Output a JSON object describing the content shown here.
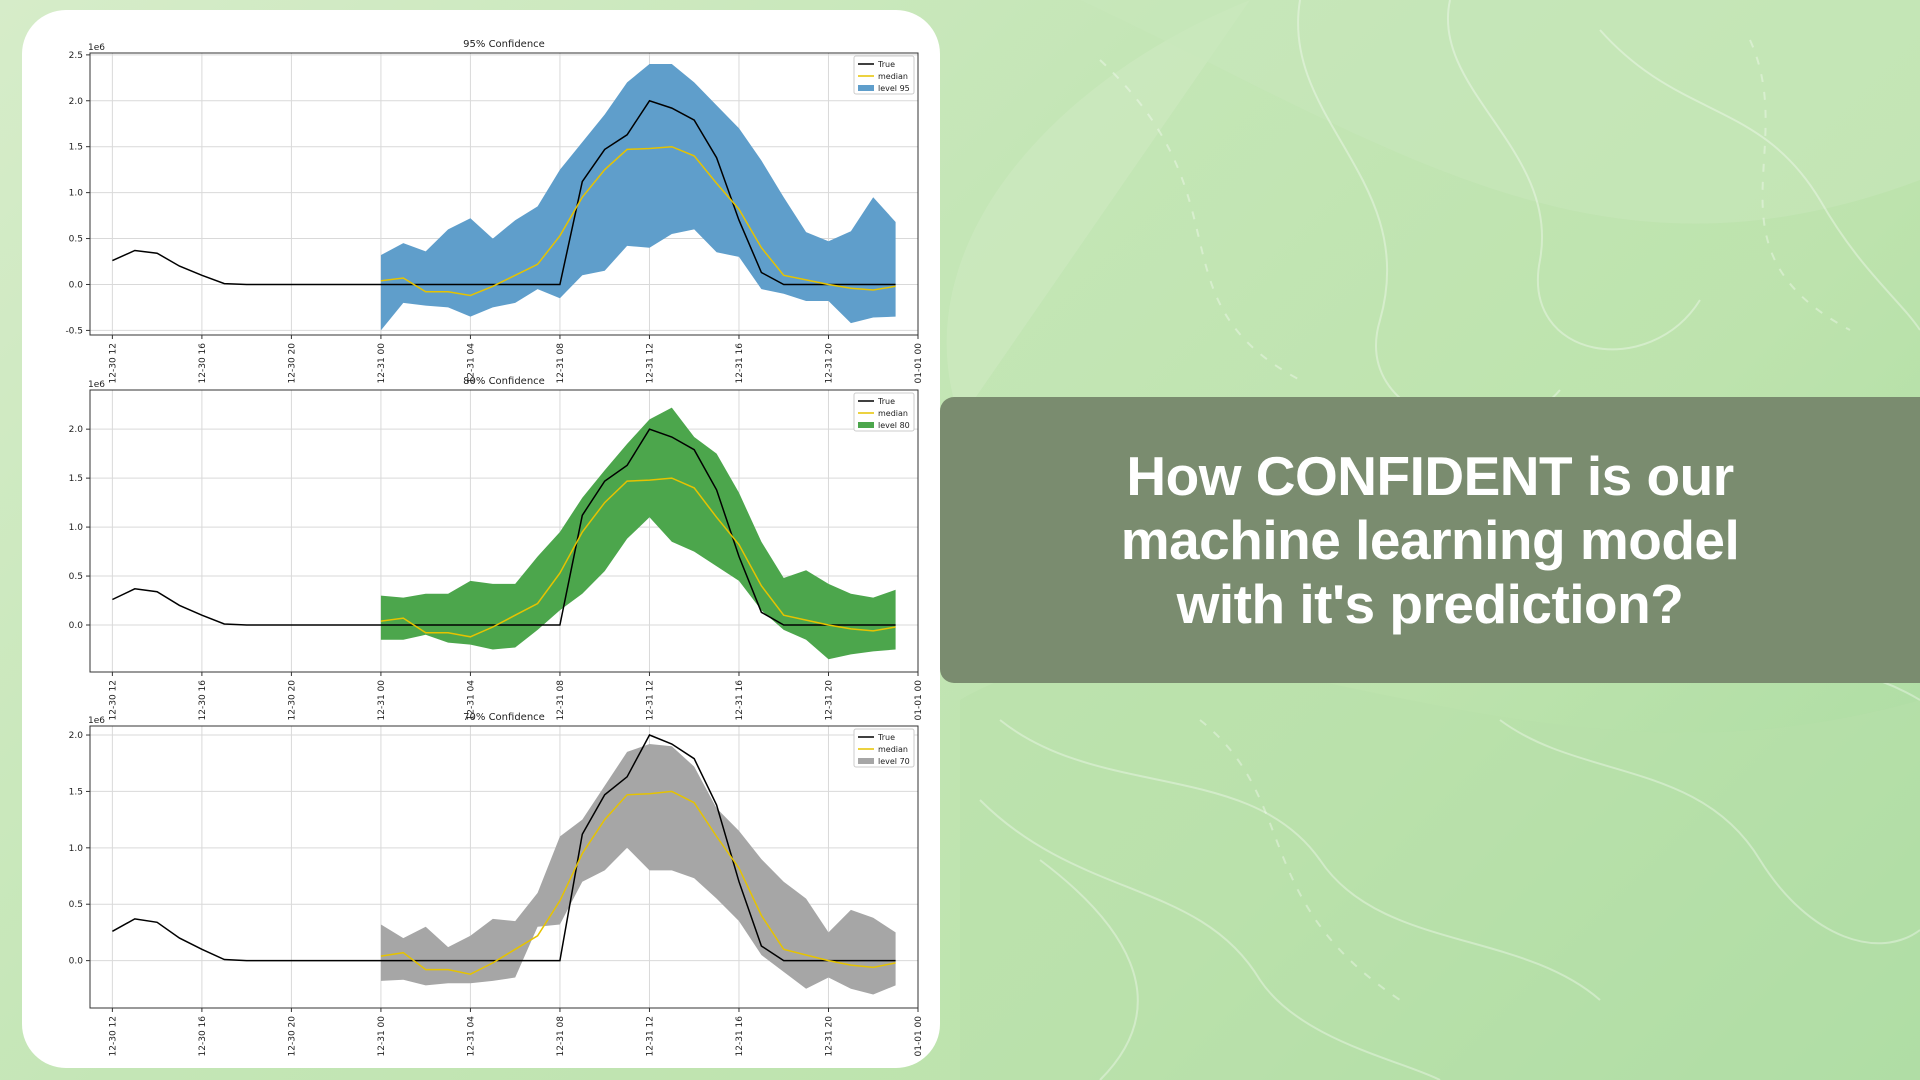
{
  "headline": {
    "lines": [
      "How CONFIDENT is our",
      "machine learning model",
      "with it's prediction?"
    ]
  },
  "colors": {
    "banner": "#7a8c6f",
    "true_line": "#000000",
    "median_line": "#e6c300",
    "band_95": "#5f9ecb",
    "band_80": "#4ca64c",
    "band_70": "#a6a6a6"
  },
  "chart_data": [
    {
      "type": "area",
      "title": "95% Confidence",
      "y_multiplier": "1e6",
      "ylim": [
        -0.55,
        2.52
      ],
      "yticks": [
        "-0.5",
        "0.0",
        "0.5",
        "1.0",
        "1.5",
        "2.0",
        "2.5"
      ],
      "ytick_values": [
        -0.5,
        0.0,
        0.5,
        1.0,
        1.5,
        2.0,
        2.5
      ],
      "grid": true,
      "legend_position": "top-right",
      "legend": [
        "True",
        "median",
        "level 95"
      ],
      "x_hours_range": [
        -1,
        36
      ],
      "xtick_hours": [
        0,
        4,
        8,
        12,
        16,
        20,
        24,
        28,
        32,
        36
      ],
      "xticks": [
        "12-30 12",
        "12-30 16",
        "12-30 20",
        "12-31 00",
        "12-31 04",
        "12-31 08",
        "12-31 12",
        "12-31 16",
        "12-31 20",
        "01-01 00"
      ],
      "band_color": "#5f9ecb",
      "series": [
        {
          "name": "True",
          "x": [
            0,
            1,
            2,
            3,
            4,
            5,
            6,
            7,
            8,
            9,
            10,
            11,
            12,
            13,
            14,
            15,
            16,
            17,
            18,
            19,
            20,
            21,
            22,
            23,
            24,
            25,
            26,
            27,
            28,
            29,
            30,
            31,
            32,
            33,
            34,
            35
          ],
          "values": [
            0.26,
            0.37,
            0.34,
            0.2,
            0.1,
            0.01,
            0,
            0,
            0,
            0,
            0,
            0,
            0,
            0,
            0,
            0,
            0,
            0,
            0,
            0,
            0,
            1.12,
            1.47,
            1.63,
            2.0,
            1.92,
            1.79,
            1.38,
            0.7,
            0.13,
            0,
            0,
            0,
            0,
            0,
            0
          ]
        },
        {
          "name": "median",
          "x": [
            12,
            13,
            14,
            15,
            16,
            17,
            18,
            19,
            20,
            21,
            22,
            23,
            24,
            25,
            26,
            27,
            28,
            29,
            30,
            31,
            32,
            33,
            34,
            35
          ],
          "values": [
            0.04,
            0.07,
            -0.08,
            -0.08,
            -0.12,
            -0.02,
            0.1,
            0.22,
            0.53,
            0.95,
            1.25,
            1.47,
            1.48,
            1.5,
            1.4,
            1.1,
            0.82,
            0.4,
            0.1,
            0.05,
            0,
            -0.04,
            -0.06,
            -0.02
          ]
        },
        {
          "name": "level 95",
          "x": [
            12,
            13,
            14,
            15,
            16,
            17,
            18,
            19,
            20,
            21,
            22,
            23,
            24,
            25,
            26,
            27,
            28,
            29,
            30,
            31,
            32,
            33,
            34,
            35
          ],
          "lower": [
            -0.5,
            -0.2,
            -0.23,
            -0.25,
            -0.35,
            -0.25,
            -0.2,
            -0.05,
            -0.15,
            0.1,
            0.15,
            0.42,
            0.4,
            0.55,
            0.6,
            0.35,
            0.3,
            -0.05,
            -0.1,
            -0.18,
            -0.18,
            -0.42,
            -0.36,
            -0.35
          ],
          "upper": [
            0.32,
            0.45,
            0.36,
            0.6,
            0.72,
            0.5,
            0.7,
            0.85,
            1.25,
            1.55,
            1.85,
            2.2,
            2.4,
            2.4,
            2.2,
            1.95,
            1.7,
            1.35,
            0.95,
            0.57,
            0.47,
            0.58,
            0.95,
            0.68
          ]
        }
      ]
    },
    {
      "type": "area",
      "title": "80% Confidence",
      "y_multiplier": "1e6",
      "ylim": [
        -0.48,
        2.4
      ],
      "yticks": [
        "0.0",
        "0.5",
        "1.0",
        "1.5",
        "2.0"
      ],
      "ytick_values": [
        0.0,
        0.5,
        1.0,
        1.5,
        2.0
      ],
      "grid": true,
      "legend_position": "top-right",
      "legend": [
        "True",
        "median",
        "level 80"
      ],
      "x_hours_range": [
        -1,
        36
      ],
      "xtick_hours": [
        0,
        4,
        8,
        12,
        16,
        20,
        24,
        28,
        32,
        36
      ],
      "xticks": [
        "12-30 12",
        "12-30 16",
        "12-30 20",
        "12-31 00",
        "12-31 04",
        "12-31 08",
        "12-31 12",
        "12-31 16",
        "12-31 20",
        "01-01 00"
      ],
      "band_color": "#4ca64c",
      "series": [
        {
          "name": "True",
          "x": [
            0,
            1,
            2,
            3,
            4,
            5,
            6,
            7,
            8,
            9,
            10,
            11,
            12,
            13,
            14,
            15,
            16,
            17,
            18,
            19,
            20,
            21,
            22,
            23,
            24,
            25,
            26,
            27,
            28,
            29,
            30,
            31,
            32,
            33,
            34,
            35
          ],
          "values": [
            0.26,
            0.37,
            0.34,
            0.2,
            0.1,
            0.01,
            0,
            0,
            0,
            0,
            0,
            0,
            0,
            0,
            0,
            0,
            0,
            0,
            0,
            0,
            0,
            1.12,
            1.47,
            1.63,
            2.0,
            1.92,
            1.79,
            1.38,
            0.7,
            0.13,
            0,
            0,
            0,
            0,
            0,
            0
          ]
        },
        {
          "name": "median",
          "x": [
            12,
            13,
            14,
            15,
            16,
            17,
            18,
            19,
            20,
            21,
            22,
            23,
            24,
            25,
            26,
            27,
            28,
            29,
            30,
            31,
            32,
            33,
            34,
            35
          ],
          "values": [
            0.04,
            0.07,
            -0.08,
            -0.08,
            -0.12,
            -0.02,
            0.1,
            0.22,
            0.53,
            0.95,
            1.25,
            1.47,
            1.48,
            1.5,
            1.4,
            1.1,
            0.82,
            0.4,
            0.1,
            0.05,
            0,
            -0.04,
            -0.06,
            -0.02
          ]
        },
        {
          "name": "level 80",
          "x": [
            12,
            13,
            14,
            15,
            16,
            17,
            18,
            19,
            20,
            21,
            22,
            23,
            24,
            25,
            26,
            27,
            28,
            29,
            30,
            31,
            32,
            33,
            34,
            35
          ],
          "lower": [
            -0.15,
            -0.15,
            -0.1,
            -0.18,
            -0.2,
            -0.25,
            -0.23,
            -0.05,
            0.15,
            0.32,
            0.55,
            0.88,
            1.1,
            0.85,
            0.75,
            0.6,
            0.45,
            0.15,
            -0.05,
            -0.15,
            -0.35,
            -0.3,
            -0.27,
            -0.25
          ],
          "upper": [
            0.3,
            0.28,
            0.32,
            0.32,
            0.45,
            0.42,
            0.42,
            0.7,
            0.95,
            1.3,
            1.58,
            1.85,
            2.1,
            2.22,
            1.92,
            1.75,
            1.35,
            0.85,
            0.48,
            0.56,
            0.42,
            0.32,
            0.28,
            0.36
          ]
        }
      ]
    },
    {
      "type": "area",
      "title": "70% Confidence",
      "y_multiplier": "1e6",
      "ylim": [
        -0.42,
        2.08
      ],
      "yticks": [
        "0.0",
        "0.5",
        "1.0",
        "1.5",
        "2.0"
      ],
      "ytick_values": [
        0.0,
        0.5,
        1.0,
        1.5,
        2.0
      ],
      "grid": true,
      "legend_position": "top-right",
      "legend": [
        "True",
        "median",
        "level 70"
      ],
      "x_hours_range": [
        -1,
        36
      ],
      "xtick_hours": [
        0,
        4,
        8,
        12,
        16,
        20,
        24,
        28,
        32,
        36
      ],
      "xticks": [
        "12-30 12",
        "12-30 16",
        "12-30 20",
        "12-31 00",
        "12-31 04",
        "12-31 08",
        "12-31 12",
        "12-31 16",
        "12-31 20",
        "01-01 00"
      ],
      "band_color": "#a6a6a6",
      "series": [
        {
          "name": "True",
          "x": [
            0,
            1,
            2,
            3,
            4,
            5,
            6,
            7,
            8,
            9,
            10,
            11,
            12,
            13,
            14,
            15,
            16,
            17,
            18,
            19,
            20,
            21,
            22,
            23,
            24,
            25,
            26,
            27,
            28,
            29,
            30,
            31,
            32,
            33,
            34,
            35
          ],
          "values": [
            0.26,
            0.37,
            0.34,
            0.2,
            0.1,
            0.01,
            0,
            0,
            0,
            0,
            0,
            0,
            0,
            0,
            0,
            0,
            0,
            0,
            0,
            0,
            0,
            1.12,
            1.47,
            1.63,
            2.0,
            1.92,
            1.79,
            1.38,
            0.7,
            0.13,
            0,
            0,
            0,
            0,
            0,
            0
          ]
        },
        {
          "name": "median",
          "x": [
            12,
            13,
            14,
            15,
            16,
            17,
            18,
            19,
            20,
            21,
            22,
            23,
            24,
            25,
            26,
            27,
            28,
            29,
            30,
            31,
            32,
            33,
            34,
            35
          ],
          "values": [
            0.04,
            0.07,
            -0.08,
            -0.08,
            -0.12,
            -0.02,
            0.1,
            0.22,
            0.53,
            0.95,
            1.25,
            1.47,
            1.48,
            1.5,
            1.4,
            1.1,
            0.82,
            0.4,
            0.1,
            0.05,
            0,
            -0.04,
            -0.06,
            -0.02
          ]
        },
        {
          "name": "level 70",
          "x": [
            12,
            13,
            14,
            15,
            16,
            17,
            18,
            19,
            20,
            21,
            22,
            23,
            24,
            25,
            26,
            27,
            28,
            29,
            30,
            31,
            32,
            33,
            34,
            35
          ],
          "lower": [
            -0.18,
            -0.17,
            -0.22,
            -0.2,
            -0.2,
            -0.18,
            -0.15,
            0.3,
            0.32,
            0.7,
            0.8,
            1.0,
            0.8,
            0.8,
            0.73,
            0.55,
            0.35,
            0.05,
            -0.1,
            -0.25,
            -0.15,
            -0.25,
            -0.3,
            -0.22
          ],
          "upper": [
            0.32,
            0.2,
            0.3,
            0.12,
            0.22,
            0.37,
            0.35,
            0.6,
            1.1,
            1.25,
            1.55,
            1.85,
            1.92,
            1.9,
            1.72,
            1.35,
            1.15,
            0.9,
            0.7,
            0.55,
            0.25,
            0.45,
            0.38,
            0.25
          ]
        }
      ]
    }
  ]
}
